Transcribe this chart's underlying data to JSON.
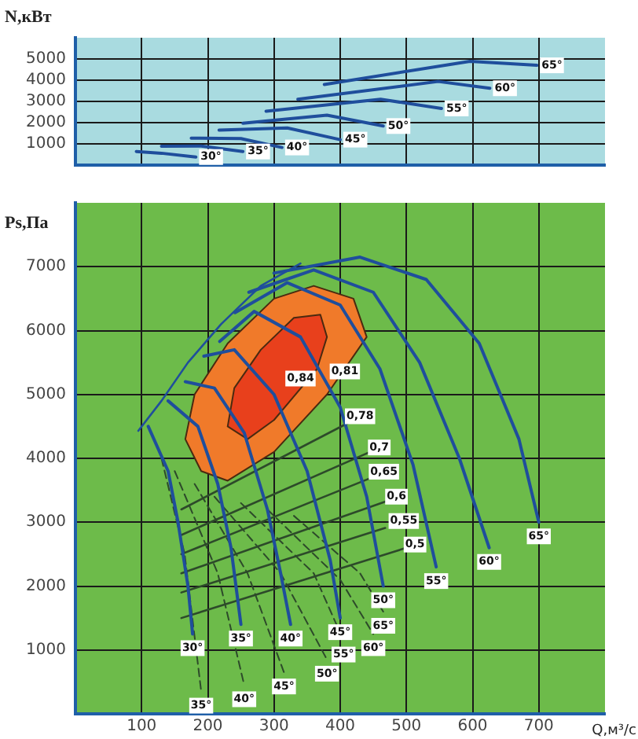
{
  "chart_data": [
    {
      "type": "line",
      "ylabel": "N,кВт",
      "xlim": [
        0,
        800
      ],
      "ylim": [
        0,
        6000
      ],
      "xticks": [
        100,
        200,
        300,
        400,
        500,
        600,
        700
      ],
      "yticks": [
        1000,
        2000,
        3000,
        4000,
        5000
      ],
      "grid": true,
      "tick_labels": "y",
      "marker": "none",
      "line_style": "solid",
      "series": [
        {
          "name": "30°",
          "color": "#1f4e9c",
          "x": [
            92,
            130,
            182
          ],
          "values": [
            640,
            560,
            380
          ]
        },
        {
          "name": "35°",
          "color": "#1f4e9c",
          "x": [
            130,
            190,
            253
          ],
          "values": [
            890,
            900,
            640
          ]
        },
        {
          "name": "40°",
          "color": "#1f4e9c",
          "x": [
            175,
            250,
            312
          ],
          "values": [
            1270,
            1250,
            830
          ]
        },
        {
          "name": "45°",
          "color": "#1f4e9c",
          "x": [
            217,
            320,
            400
          ],
          "values": [
            1650,
            1750,
            1200
          ]
        },
        {
          "name": "50°",
          "color": "#1f4e9c",
          "x": [
            253,
            380,
            465
          ],
          "values": [
            1970,
            2350,
            1840
          ]
        },
        {
          "name": "55°",
          "color": "#1f4e9c",
          "x": [
            288,
            461,
            553
          ],
          "values": [
            2540,
            3100,
            2670
          ]
        },
        {
          "name": "60°",
          "color": "#1f4e9c",
          "x": [
            336,
            548,
            626
          ],
          "values": [
            3100,
            3940,
            3620
          ]
        },
        {
          "name": "65°",
          "color": "#1f4e9c",
          "x": [
            376,
            596,
            697
          ],
          "values": [
            3800,
            4890,
            4700
          ]
        }
      ]
    },
    {
      "type": "line",
      "ylabel": "Ps,Па",
      "xlabel": "Q,м³/с",
      "xlim": [
        0,
        800
      ],
      "ylim": [
        0,
        8000
      ],
      "xticks": [
        100,
        200,
        300,
        400,
        500,
        600,
        700
      ],
      "yticks": [
        1000,
        2000,
        3000,
        4000,
        5000,
        6000,
        7000
      ],
      "grid": true,
      "marker": "none",
      "line_style": "solid",
      "series": [
        {
          "type": "area",
          "color": "#f07a2a",
          "x": [
            166,
            190,
            230,
            300,
            380,
            440,
            420,
            360,
            300,
            230,
            180,
            166
          ],
          "values": [
            4300,
            3800,
            3650,
            4100,
            5000,
            5900,
            6500,
            6700,
            6500,
            5800,
            5000,
            4300
          ]
        },
        {
          "type": "area",
          "color": "#e8401c",
          "x": [
            230,
            260,
            300,
            365,
            380,
            370,
            330,
            280,
            240,
            230
          ],
          "values": [
            4500,
            4300,
            4600,
            5400,
            5900,
            6250,
            6200,
            5700,
            5100,
            4500
          ]
        },
        {
          "color": "#1f4e9c",
          "x": [
            95,
            130,
            170,
            220,
            280,
            340
          ],
          "values": [
            4430,
            4900,
            5500,
            6100,
            6700,
            7050
          ]
        },
        {
          "color": "#2d4a2a",
          "x": [
            160,
            413
          ],
          "values": [
            3200,
            4560
          ]
        },
        {
          "color": "#2d4a2a",
          "x": [
            160,
            445
          ],
          "values": [
            2800,
            4100
          ]
        },
        {
          "color": "#2d4a2a",
          "x": [
            160,
            448
          ],
          "values": [
            2500,
            3700
          ]
        },
        {
          "color": "#2d4a2a",
          "x": [
            160,
            470
          ],
          "values": [
            2200,
            3330
          ]
        },
        {
          "color": "#2d4a2a",
          "x": [
            160,
            468
          ],
          "values": [
            1900,
            2910
          ]
        },
        {
          "color": "#2d4a2a",
          "x": [
            160,
            497
          ],
          "values": [
            1500,
            2590
          ]
        },
        {
          "name": "35°",
          "color": "#2d4a2a",
          "line_style": "dashed",
          "x": [
            130,
            165,
            190
          ],
          "values": [
            4000,
            2500,
            350
          ]
        },
        {
          "name": "40°",
          "color": "#2d4a2a",
          "line_style": "dashed",
          "x": [
            150,
            215,
            255
          ],
          "values": [
            3800,
            2200,
            450
          ]
        },
        {
          "name": "45°",
          "color": "#2d4a2a",
          "line_style": "dashed",
          "x": [
            180,
            260,
            315
          ],
          "values": [
            3600,
            2200,
            650
          ]
        },
        {
          "name": "50°",
          "color": "#2d4a2a",
          "line_style": "dashed",
          "x": [
            210,
            310,
            380
          ],
          "values": [
            3400,
            2200,
            850
          ]
        },
        {
          "name": "55°",
          "color": "#2d4a2a",
          "line_style": "dashed",
          "x": [
            250,
            360,
            405
          ],
          "values": [
            3300,
            2200,
            1150
          ]
        },
        {
          "name": "60°",
          "color": "#2d4a2a",
          "line_style": "dashed",
          "x": [
            290,
            400,
            450
          ],
          "values": [
            3200,
            2100,
            1250
          ]
        },
        {
          "name": "65°",
          "color": "#2d4a2a",
          "line_style": "dashed",
          "x": [
            330,
            430,
            465
          ],
          "values": [
            3100,
            2200,
            1600
          ]
        },
        {
          "name": "30°",
          "color": "#1f4e9c",
          "x": [
            110,
            140,
            155,
            170,
            177
          ],
          "values": [
            4500,
            3800,
            3000,
            2000,
            1250
          ]
        },
        {
          "name": "35°",
          "color": "#1f4e9c",
          "x": [
            140,
            185,
            215,
            235,
            250
          ],
          "values": [
            4900,
            4500,
            3600,
            2600,
            1400
          ]
        },
        {
          "name": "40°",
          "color": "#1f4e9c",
          "x": [
            166,
            210,
            255,
            290,
            310,
            325
          ],
          "values": [
            5200,
            5100,
            4400,
            3200,
            2200,
            1400
          ]
        },
        {
          "name": "45°",
          "color": "#1f4e9c",
          "x": [
            194,
            240,
            300,
            350,
            385,
            400
          ],
          "values": [
            5600,
            5700,
            5000,
            3800,
            2400,
            1500
          ]
        },
        {
          "name": "50°",
          "color": "#1f4e9c",
          "x": [
            218,
            270,
            340,
            400,
            440,
            465
          ],
          "values": [
            5830,
            6300,
            5900,
            4800,
            3400,
            2000
          ]
        },
        {
          "name": "55°",
          "color": "#1f4e9c",
          "x": [
            241,
            320,
            400,
            460,
            510,
            545
          ],
          "values": [
            6280,
            6750,
            6400,
            5400,
            3900,
            2300
          ]
        },
        {
          "name": "60°",
          "color": "#1f4e9c",
          "x": [
            262,
            360,
            450,
            520,
            580,
            625
          ],
          "values": [
            6600,
            6950,
            6600,
            5500,
            4000,
            2600
          ]
        },
        {
          "name": "65°",
          "color": "#1f4e9c",
          "x": [
            300,
            430,
            530,
            610,
            670,
            700
          ],
          "values": [
            6900,
            7150,
            6800,
            5800,
            4300,
            3000
          ]
        }
      ],
      "annotations": [
        {
          "text": "0,84",
          "x": 340,
          "y": 5250
        },
        {
          "text": "0,81",
          "x": 407,
          "y": 5360
        },
        {
          "text": "0,78",
          "x": 430,
          "y": 4660
        },
        {
          "text": "0,7",
          "x": 459,
          "y": 4170
        },
        {
          "text": "0,65",
          "x": 466,
          "y": 3790
        },
        {
          "text": "0,6",
          "x": 485,
          "y": 3400
        },
        {
          "text": "0,55",
          "x": 496,
          "y": 3020
        },
        {
          "text": "0,5",
          "x": 513,
          "y": 2650
        }
      ]
    }
  ]
}
